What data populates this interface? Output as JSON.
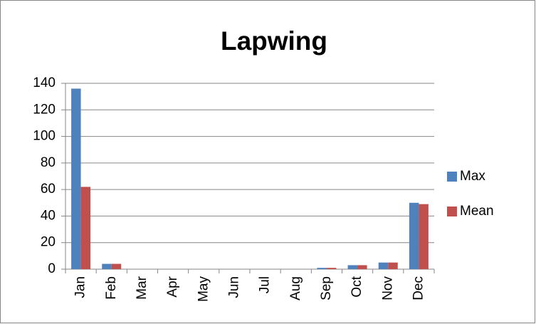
{
  "chart_data": {
    "type": "bar",
    "title": "Lapwing",
    "categories": [
      "Jan",
      "Feb",
      "Mar",
      "Apr",
      "May",
      "Jun",
      "Jul",
      "Aug",
      "Sep",
      "Oct",
      "Nov",
      "Dec"
    ],
    "series": [
      {
        "name": "Max",
        "color": "#4f81bd",
        "values": [
          136,
          4,
          0,
          0,
          0,
          0,
          0,
          0,
          1,
          3,
          5,
          50
        ]
      },
      {
        "name": "Mean",
        "color": "#c0504d",
        "values": [
          62,
          4,
          0,
          0,
          0,
          0,
          0,
          0,
          1,
          3,
          5,
          49
        ]
      }
    ],
    "ylim": [
      0,
      140
    ],
    "yticks": [
      0,
      20,
      40,
      60,
      80,
      100,
      120,
      140
    ],
    "grid": true,
    "legend": "right"
  }
}
